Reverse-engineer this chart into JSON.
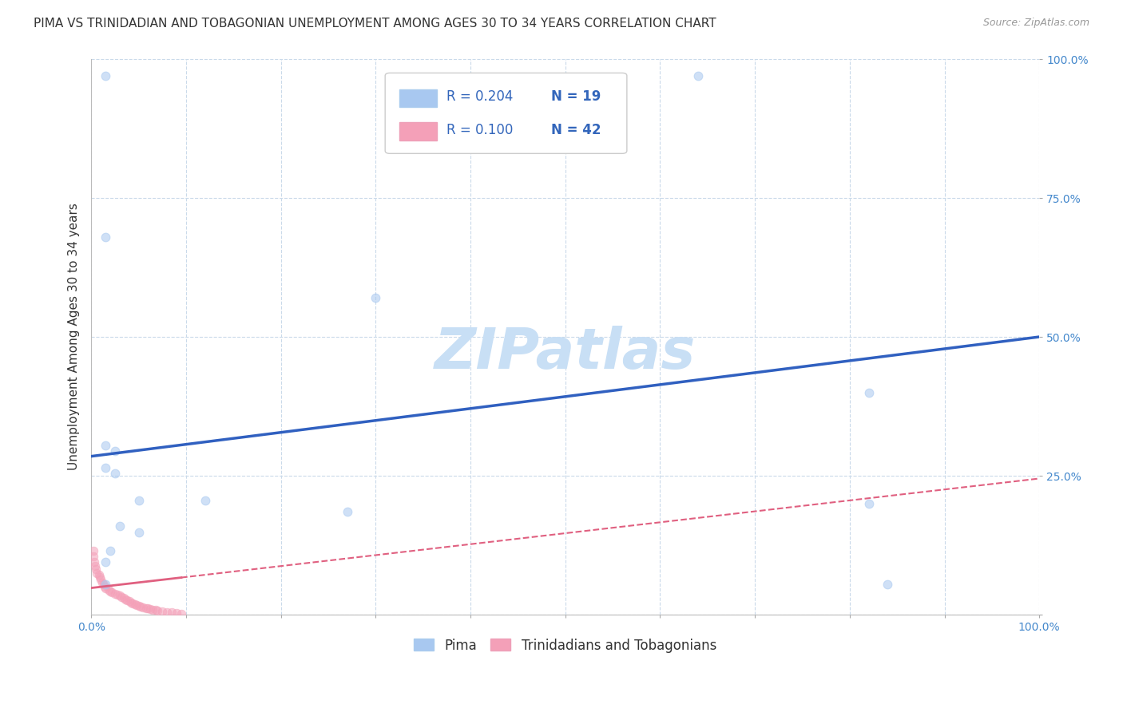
{
  "title": "PIMA VS TRINIDADIAN AND TOBAGONIAN UNEMPLOYMENT AMONG AGES 30 TO 34 YEARS CORRELATION CHART",
  "source": "Source: ZipAtlas.com",
  "ylabel": "Unemployment Among Ages 30 to 34 years",
  "xlim": [
    0,
    1.0
  ],
  "ylim": [
    0,
    1.0
  ],
  "legend_labels": [
    "Pima",
    "Trinidadians and Tobagonians"
  ],
  "legend_R_pima": "R = 0.204",
  "legend_N_pima": "N = 19",
  "legend_R_trini": "R = 0.100",
  "legend_N_trini": "N = 42",
  "pima_color": "#A8C8F0",
  "trini_color": "#F4A0B8",
  "trendline_pima_color": "#3060C0",
  "trendline_trini_color": "#E06080",
  "background_color": "#ffffff",
  "watermark": "ZIPatlas",
  "pima_scatter": [
    [
      0.015,
      0.97
    ],
    [
      0.64,
      0.97
    ],
    [
      0.015,
      0.68
    ],
    [
      0.3,
      0.57
    ],
    [
      0.015,
      0.305
    ],
    [
      0.025,
      0.295
    ],
    [
      0.015,
      0.265
    ],
    [
      0.025,
      0.255
    ],
    [
      0.05,
      0.205
    ],
    [
      0.12,
      0.205
    ],
    [
      0.27,
      0.185
    ],
    [
      0.03,
      0.16
    ],
    [
      0.05,
      0.148
    ],
    [
      0.82,
      0.4
    ],
    [
      0.82,
      0.2
    ],
    [
      0.84,
      0.055
    ],
    [
      0.02,
      0.115
    ],
    [
      0.015,
      0.095
    ],
    [
      0.015,
      0.055
    ]
  ],
  "trini_scatter": [
    [
      0.002,
      0.115
    ],
    [
      0.002,
      0.105
    ],
    [
      0.003,
      0.095
    ],
    [
      0.004,
      0.088
    ],
    [
      0.005,
      0.082
    ],
    [
      0.006,
      0.075
    ],
    [
      0.008,
      0.072
    ],
    [
      0.009,
      0.068
    ],
    [
      0.01,
      0.063
    ],
    [
      0.012,
      0.058
    ],
    [
      0.013,
      0.054
    ],
    [
      0.014,
      0.05
    ],
    [
      0.015,
      0.048
    ],
    [
      0.018,
      0.045
    ],
    [
      0.02,
      0.042
    ],
    [
      0.022,
      0.04
    ],
    [
      0.025,
      0.038
    ],
    [
      0.028,
      0.036
    ],
    [
      0.03,
      0.034
    ],
    [
      0.032,
      0.032
    ],
    [
      0.034,
      0.03
    ],
    [
      0.036,
      0.028
    ],
    [
      0.038,
      0.026
    ],
    [
      0.04,
      0.024
    ],
    [
      0.042,
      0.022
    ],
    [
      0.044,
      0.02
    ],
    [
      0.046,
      0.018
    ],
    [
      0.048,
      0.017
    ],
    [
      0.05,
      0.016
    ],
    [
      0.052,
      0.014
    ],
    [
      0.055,
      0.013
    ],
    [
      0.058,
      0.012
    ],
    [
      0.06,
      0.011
    ],
    [
      0.062,
      0.01
    ],
    [
      0.065,
      0.009
    ],
    [
      0.068,
      0.008
    ],
    [
      0.07,
      0.007
    ],
    [
      0.075,
      0.006
    ],
    [
      0.08,
      0.005
    ],
    [
      0.085,
      0.004
    ],
    [
      0.09,
      0.003
    ],
    [
      0.095,
      0.002
    ]
  ],
  "pima_trend_x0": 0.0,
  "pima_trend_y0": 0.285,
  "pima_trend_x1": 1.0,
  "pima_trend_y1": 0.5,
  "trini_trend_x0": 0.0,
  "trini_trend_y0": 0.048,
  "trini_trend_x1": 1.0,
  "trini_trend_y1": 0.245,
  "trini_trend_solid_x1": 0.095,
  "title_fontsize": 11,
  "axis_label_fontsize": 11,
  "tick_fontsize": 10,
  "watermark_fontsize": 52,
  "watermark_color": "#C8DFF5",
  "grid_color": "#CADAEA",
  "marker_size": 60,
  "marker_alpha": 0.55
}
